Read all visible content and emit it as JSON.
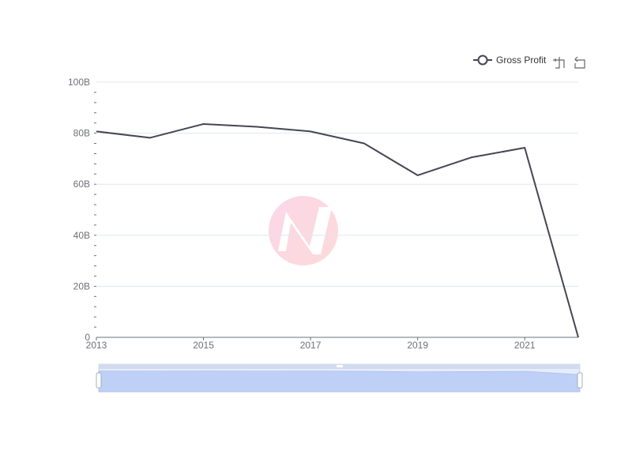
{
  "chart_data": {
    "type": "line",
    "x": [
      2013,
      2014,
      2015,
      2016,
      2017,
      2018,
      2019,
      2020,
      2021,
      2022
    ],
    "x_tick_labels": [
      "2013",
      "2015",
      "2017",
      "2019",
      "2021"
    ],
    "y_tick_labels": [
      "0",
      "20B",
      "40B",
      "60B",
      "80B",
      "100B"
    ],
    "ylim": [
      0,
      100000000000
    ],
    "grid": true,
    "legend_position": "top-right",
    "series": [
      {
        "name": "Gross Profit",
        "color": "#464553",
        "values": [
          80700000000,
          78200000000,
          83600000000,
          82500000000,
          80700000000,
          76000000000,
          63500000000,
          70500000000,
          74300000000,
          0
        ]
      }
    ]
  },
  "toolbox": {
    "zoom_icon": "data-zoom-icon",
    "restore_icon": "zoom-reset-icon"
  },
  "watermark_icon": "brand-logo-watermark"
}
